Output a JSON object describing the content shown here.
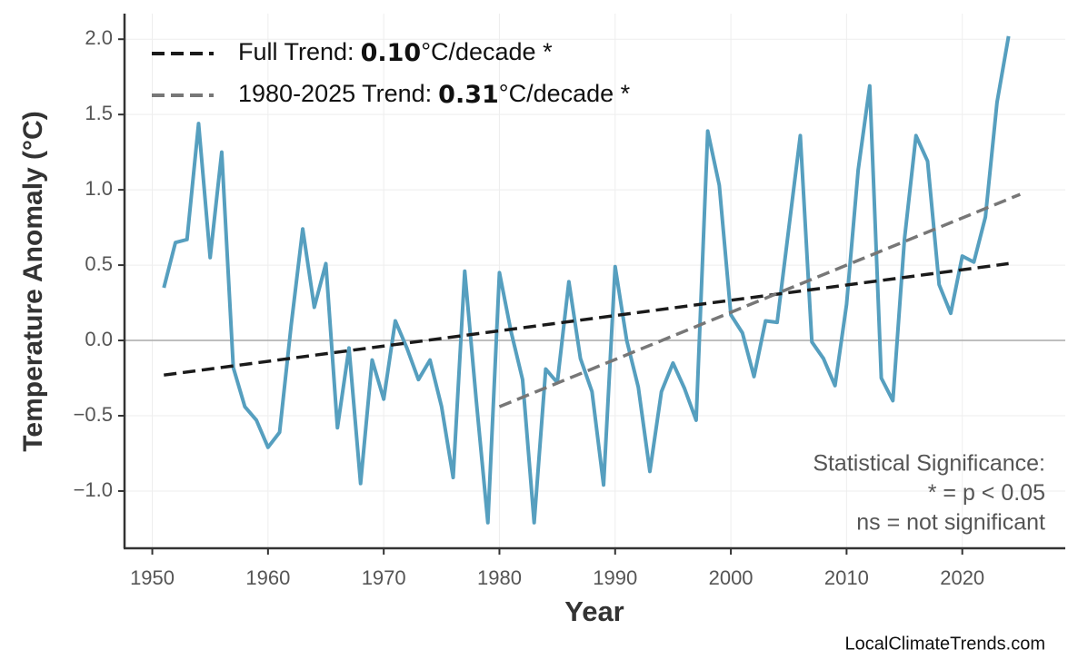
{
  "chart_data": {
    "type": "line",
    "ylabel": "Temperature Anomaly (°C)",
    "xlabel": "Year",
    "x": [
      1951,
      1952,
      1953,
      1954,
      1955,
      1956,
      1957,
      1958,
      1959,
      1960,
      1961,
      1962,
      1963,
      1964,
      1965,
      1966,
      1967,
      1968,
      1969,
      1970,
      1971,
      1972,
      1973,
      1974,
      1975,
      1976,
      1977,
      1978,
      1979,
      1980,
      1981,
      1982,
      1983,
      1984,
      1985,
      1986,
      1987,
      1988,
      1989,
      1990,
      1991,
      1992,
      1993,
      1994,
      1995,
      1996,
      1997,
      1998,
      1999,
      2000,
      2001,
      2002,
      2003,
      2004,
      2005,
      2006,
      2007,
      2008,
      2009,
      2010,
      2011,
      2012,
      2013,
      2014,
      2015,
      2016,
      2017,
      2018,
      2019,
      2020,
      2021,
      2022,
      2023,
      2024
    ],
    "series": [
      {
        "color": "#569fbf",
        "values": [
          0.35,
          0.65,
          0.67,
          1.44,
          0.55,
          1.25,
          -0.18,
          -0.44,
          -0.53,
          -0.71,
          -0.61,
          0.1,
          0.74,
          0.22,
          0.51,
          -0.58,
          -0.05,
          -0.95,
          -0.13,
          -0.39,
          0.13,
          -0.05,
          -0.26,
          -0.13,
          -0.44,
          -0.91,
          0.46,
          -0.4,
          -1.21,
          0.45,
          0.06,
          -0.26,
          -1.21,
          -0.19,
          -0.28,
          0.39,
          -0.12,
          -0.34,
          -0.96,
          0.49,
          0.0,
          -0.31,
          -0.87,
          -0.34,
          -0.15,
          -0.32,
          -0.53,
          1.39,
          1.03,
          0.17,
          0.05,
          -0.24,
          0.13,
          0.12,
          0.74,
          1.36,
          -0.01,
          -0.12,
          -0.3,
          0.24,
          1.13,
          1.69,
          -0.25,
          -0.4,
          0.67,
          1.36,
          1.19,
          0.37,
          0.18,
          0.56,
          0.52,
          0.82,
          1.58,
          2.02
        ]
      }
    ],
    "trends": [
      {
        "name": "Full Trend:",
        "slope": "0.10",
        "unit": "°C/decade *",
        "color": "#1a1a1a",
        "x": [
          1951,
          2024
        ],
        "values": [
          -0.23,
          0.51
        ]
      },
      {
        "name": "1980-2025 Trend:",
        "slope": "0.31",
        "unit": "°C/decade *",
        "color": "#777777",
        "x": [
          1980,
          2025
        ],
        "values": [
          -0.44,
          0.97
        ]
      }
    ],
    "annotation": [
      "Statistical Significance:",
      "* = p < 0.05",
      "ns = not significant"
    ],
    "source": "LocalClimateTrends.com",
    "xlim": [
      1947.6,
      2028.9
    ],
    "ylim": [
      -1.38,
      2.17
    ],
    "xticks": [
      1950,
      1960,
      1970,
      1980,
      1990,
      2000,
      2010,
      2020
    ],
    "yticks": [
      {
        "value": -1.0,
        "label": "−1.0"
      },
      {
        "value": -0.5,
        "label": "−0.5"
      },
      {
        "value": 0,
        "label": "0.0"
      },
      0.5,
      {
        "value": 1.0,
        "label": "1.0"
      },
      1.5,
      {
        "value": 2.0,
        "label": "2.0"
      }
    ],
    "grid": true,
    "legend": "upper left"
  }
}
